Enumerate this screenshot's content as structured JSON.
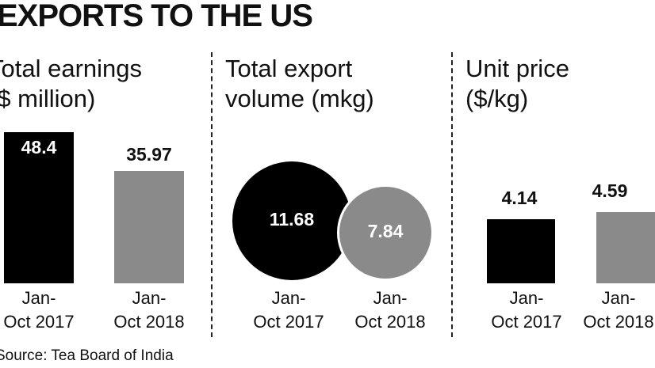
{
  "title": "EXPORTS TO THE US",
  "source": "Source: Tea Board of India",
  "chart_data": [
    {
      "type": "bar",
      "title": "Total earnings ($ million)",
      "categories": [
        "Jan-Oct 2017",
        "Jan-Oct 2018"
      ],
      "values": [
        48.4,
        35.97
      ],
      "value_labels": [
        "48.4",
        "35.97"
      ],
      "category_lines": [
        [
          "Jan-",
          "Oct 2017"
        ],
        [
          "Jan-",
          "Oct 2018"
        ]
      ],
      "colors": [
        "#000000",
        "#8a8a8a"
      ],
      "label_inside": [
        true,
        false
      ]
    },
    {
      "type": "bubble",
      "title": "Total export volume (mkg)",
      "categories": [
        "Jan-Oct 2017",
        "Jan-Oct 2018"
      ],
      "values": [
        11.68,
        7.84
      ],
      "value_labels": [
        "11.68",
        "7.84"
      ],
      "category_lines": [
        [
          "Jan-",
          "Oct 2017"
        ],
        [
          "Jan-",
          "Oct 2018"
        ]
      ],
      "colors": [
        "#000000",
        "#8a8a8a"
      ]
    },
    {
      "type": "bar",
      "title": "Unit price ($/kg)",
      "categories": [
        "Jan-Oct 2017",
        "Jan-Oct 2018"
      ],
      "values": [
        4.14,
        4.59
      ],
      "value_labels": [
        "4.14",
        "4.59"
      ],
      "category_lines": [
        [
          "Jan-",
          "Oct 2017"
        ],
        [
          "Jan-",
          "Oct 2018"
        ]
      ],
      "colors": [
        "#000000",
        "#8a8a8a"
      ],
      "label_inside": [
        false,
        false
      ]
    }
  ]
}
